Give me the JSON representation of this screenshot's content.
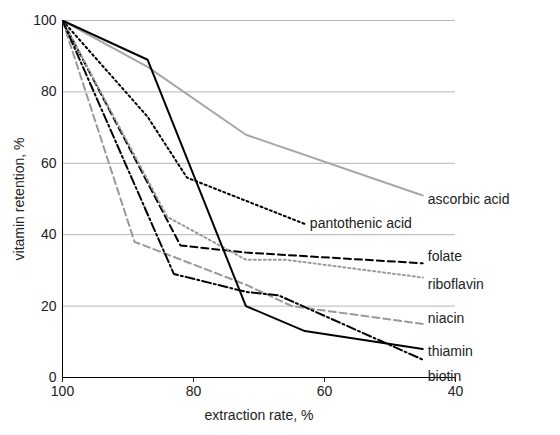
{
  "chart_data": {
    "type": "line",
    "xlabel": "extraction rate, %",
    "ylabel": "vitamin retention, %",
    "xlim": [
      100,
      40
    ],
    "xticks": [
      100,
      80,
      60,
      40
    ],
    "ylim": [
      0,
      100
    ],
    "yticks": [
      0,
      20,
      40,
      60,
      80,
      100
    ],
    "grid": true,
    "series": [
      {
        "name": "ascorbic acid",
        "color": "#a6a6a6",
        "line_style": "solid",
        "x": [
          100,
          87,
          72,
          45
        ],
        "values": [
          100,
          87,
          68,
          51
        ]
      },
      {
        "name": "pantothenic acid",
        "color": "#000000",
        "line_style": "dotted",
        "x": [
          100,
          87,
          81,
          63
        ],
        "values": [
          100,
          73,
          56,
          43
        ]
      },
      {
        "name": "folate",
        "color": "#000000",
        "line_style": "dashed",
        "x": [
          100,
          82,
          72,
          45
        ],
        "values": [
          100,
          37,
          35,
          32
        ]
      },
      {
        "name": "riboflavin",
        "color": "#999999",
        "line_style": "dotted",
        "x": [
          100,
          84,
          72,
          66,
          45
        ],
        "values": [
          100,
          45,
          33,
          33,
          28
        ]
      },
      {
        "name": "niacin",
        "color": "#999999",
        "line_style": "dashed",
        "x": [
          100,
          89,
          72,
          65,
          45
        ],
        "values": [
          100,
          38,
          26,
          20,
          15
        ]
      },
      {
        "name": "thiamin",
        "color": "#000000",
        "line_style": "solid",
        "x": [
          100,
          87,
          72,
          63,
          45
        ],
        "values": [
          100,
          89,
          20,
          13,
          8
        ]
      },
      {
        "name": "biotin",
        "color": "#000000",
        "line_style": "dashdot",
        "x": [
          100,
          83,
          72,
          67,
          45
        ],
        "values": [
          100,
          29,
          24,
          23,
          5
        ]
      }
    ]
  }
}
